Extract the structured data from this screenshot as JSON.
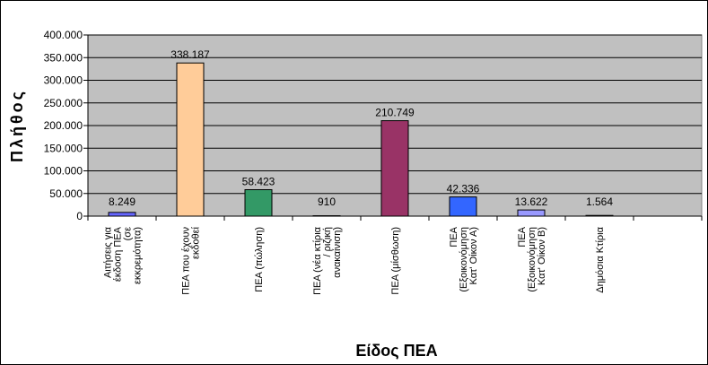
{
  "chart_data": {
    "type": "bar",
    "xlabel": "Είδος ΠΕΑ",
    "ylabel": "Πλήθος",
    "ylim": [
      0,
      400000
    ],
    "yticks": [
      "0",
      "50.000",
      "100.000",
      "150.000",
      "200.000",
      "250.000",
      "300.000",
      "350.000",
      "400.000"
    ],
    "ytick_values": [
      0,
      50000,
      100000,
      150000,
      200000,
      250000,
      300000,
      350000,
      400000
    ],
    "grid": true,
    "plot_background": "#c0c0c0",
    "categories": [
      [
        "Αιτήσεις για",
        "έκδοση ΠΕΑ",
        "(σε",
        "εκκρεμότητα)"
      ],
      [
        "ΠΕΑ που έχουν",
        "εκδοθεί"
      ],
      [
        "ΠΕΑ (πώληση)"
      ],
      [
        "ΠΕΑ (νέα κτίρια",
        "/ ριζική",
        "ανακαίνιση)"
      ],
      [
        "ΠΕΑ (μίσθωση)"
      ],
      [
        "ΠΕΑ",
        "(Εξοικονόμηση",
        "Κατ' Οίκον Α)"
      ],
      [
        "ΠΕΑ",
        "(Εξοικονόμηση",
        "Κατ' Οίκον Β)"
      ],
      [
        "Δημόσια Κτίρια"
      ],
      [
        ""
      ]
    ],
    "values": [
      8249,
      338187,
      58423,
      910,
      210749,
      42336,
      13622,
      1564,
      null
    ],
    "data_labels": [
      "8.249",
      "338.187",
      "58.423",
      "910",
      "210.749",
      "42.336",
      "13.622",
      "1.564",
      ""
    ],
    "colors": [
      "#6666ff",
      "#ffcc99",
      "#339966",
      "#33cccc",
      "#993366",
      "#3366ff",
      "#9999ff",
      "#000080",
      "#c0c0c0"
    ]
  }
}
